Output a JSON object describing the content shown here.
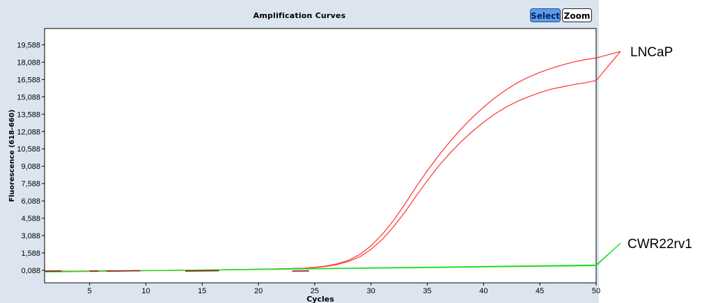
{
  "toolbar": {
    "title": "Amplification Curves",
    "select_label": "Select",
    "zoom_label": "Zoom"
  },
  "colors": {
    "panel_background": "#dce5ef",
    "plot_background": "#ffffff",
    "select_button": "#5d9cec",
    "red_series": "#ff3030",
    "green_series": "#22dd22",
    "dark_red_baseline": "#8b1a1a"
  },
  "chart_data": {
    "type": "line",
    "title": "Amplification Curves",
    "xlabel": "Cycles",
    "ylabel": "Fluorescence (618-660)",
    "xlim": [
      1,
      50
    ],
    "ylim": [
      -1000,
      21000
    ],
    "x_ticks": [
      5,
      10,
      15,
      20,
      25,
      30,
      35,
      40,
      45,
      50
    ],
    "y_ticks": [
      88,
      1588,
      3088,
      4588,
      6088,
      7588,
      9088,
      10588,
      12088,
      13588,
      15088,
      16588,
      18088,
      19588
    ],
    "y_tick_labels": [
      "0,088",
      "1,588",
      "3,088",
      "4,588",
      "6,088",
      "7,588",
      "9,088",
      "10,588",
      "12,088",
      "13,588",
      "15,088",
      "16,588",
      "18,088",
      "19,588"
    ],
    "grid": false,
    "annotations": [
      "LNCaP",
      "CWR22rv1"
    ],
    "series": [
      {
        "group": "LNCaP",
        "color": "#ff3030",
        "x": [
          1,
          5,
          10,
          15,
          20,
          24,
          25,
          26,
          27,
          28,
          29,
          30,
          31,
          32,
          33,
          34,
          35,
          36,
          37,
          38,
          39,
          40,
          41,
          42,
          43,
          44,
          45,
          46,
          47,
          48,
          49,
          50
        ],
        "y": [
          0,
          20,
          60,
          110,
          180,
          260,
          340,
          450,
          650,
          950,
          1450,
          2200,
          3200,
          4400,
          5800,
          7300,
          8700,
          10000,
          11200,
          12300,
          13300,
          14200,
          15000,
          15700,
          16300,
          16800,
          17200,
          17550,
          17850,
          18100,
          18300,
          18450
        ]
      },
      {
        "group": "LNCaP",
        "color": "#ff3030",
        "x": [
          1,
          5,
          10,
          15,
          20,
          24,
          25,
          26,
          27,
          28,
          29,
          30,
          31,
          32,
          33,
          34,
          35,
          36,
          37,
          38,
          39,
          40,
          41,
          42,
          43,
          44,
          45,
          46,
          47,
          48,
          49,
          50
        ],
        "y": [
          0,
          20,
          55,
          100,
          170,
          250,
          320,
          420,
          580,
          850,
          1250,
          1900,
          2750,
          3850,
          5100,
          6500,
          7850,
          9100,
          10200,
          11200,
          12100,
          12900,
          13600,
          14200,
          14700,
          15100,
          15450,
          15750,
          15950,
          16150,
          16300,
          16500
        ]
      },
      {
        "group": "CWR22rv1",
        "color": "#22dd22",
        "x": [
          1,
          10,
          20,
          30,
          40,
          50
        ],
        "y": [
          -30,
          60,
          180,
          300,
          420,
          550
        ]
      },
      {
        "group": "CWR22rv1",
        "color": "#22dd22",
        "x": [
          1,
          10,
          20,
          30,
          40,
          50
        ],
        "y": [
          -60,
          40,
          150,
          260,
          370,
          480
        ]
      }
    ]
  }
}
